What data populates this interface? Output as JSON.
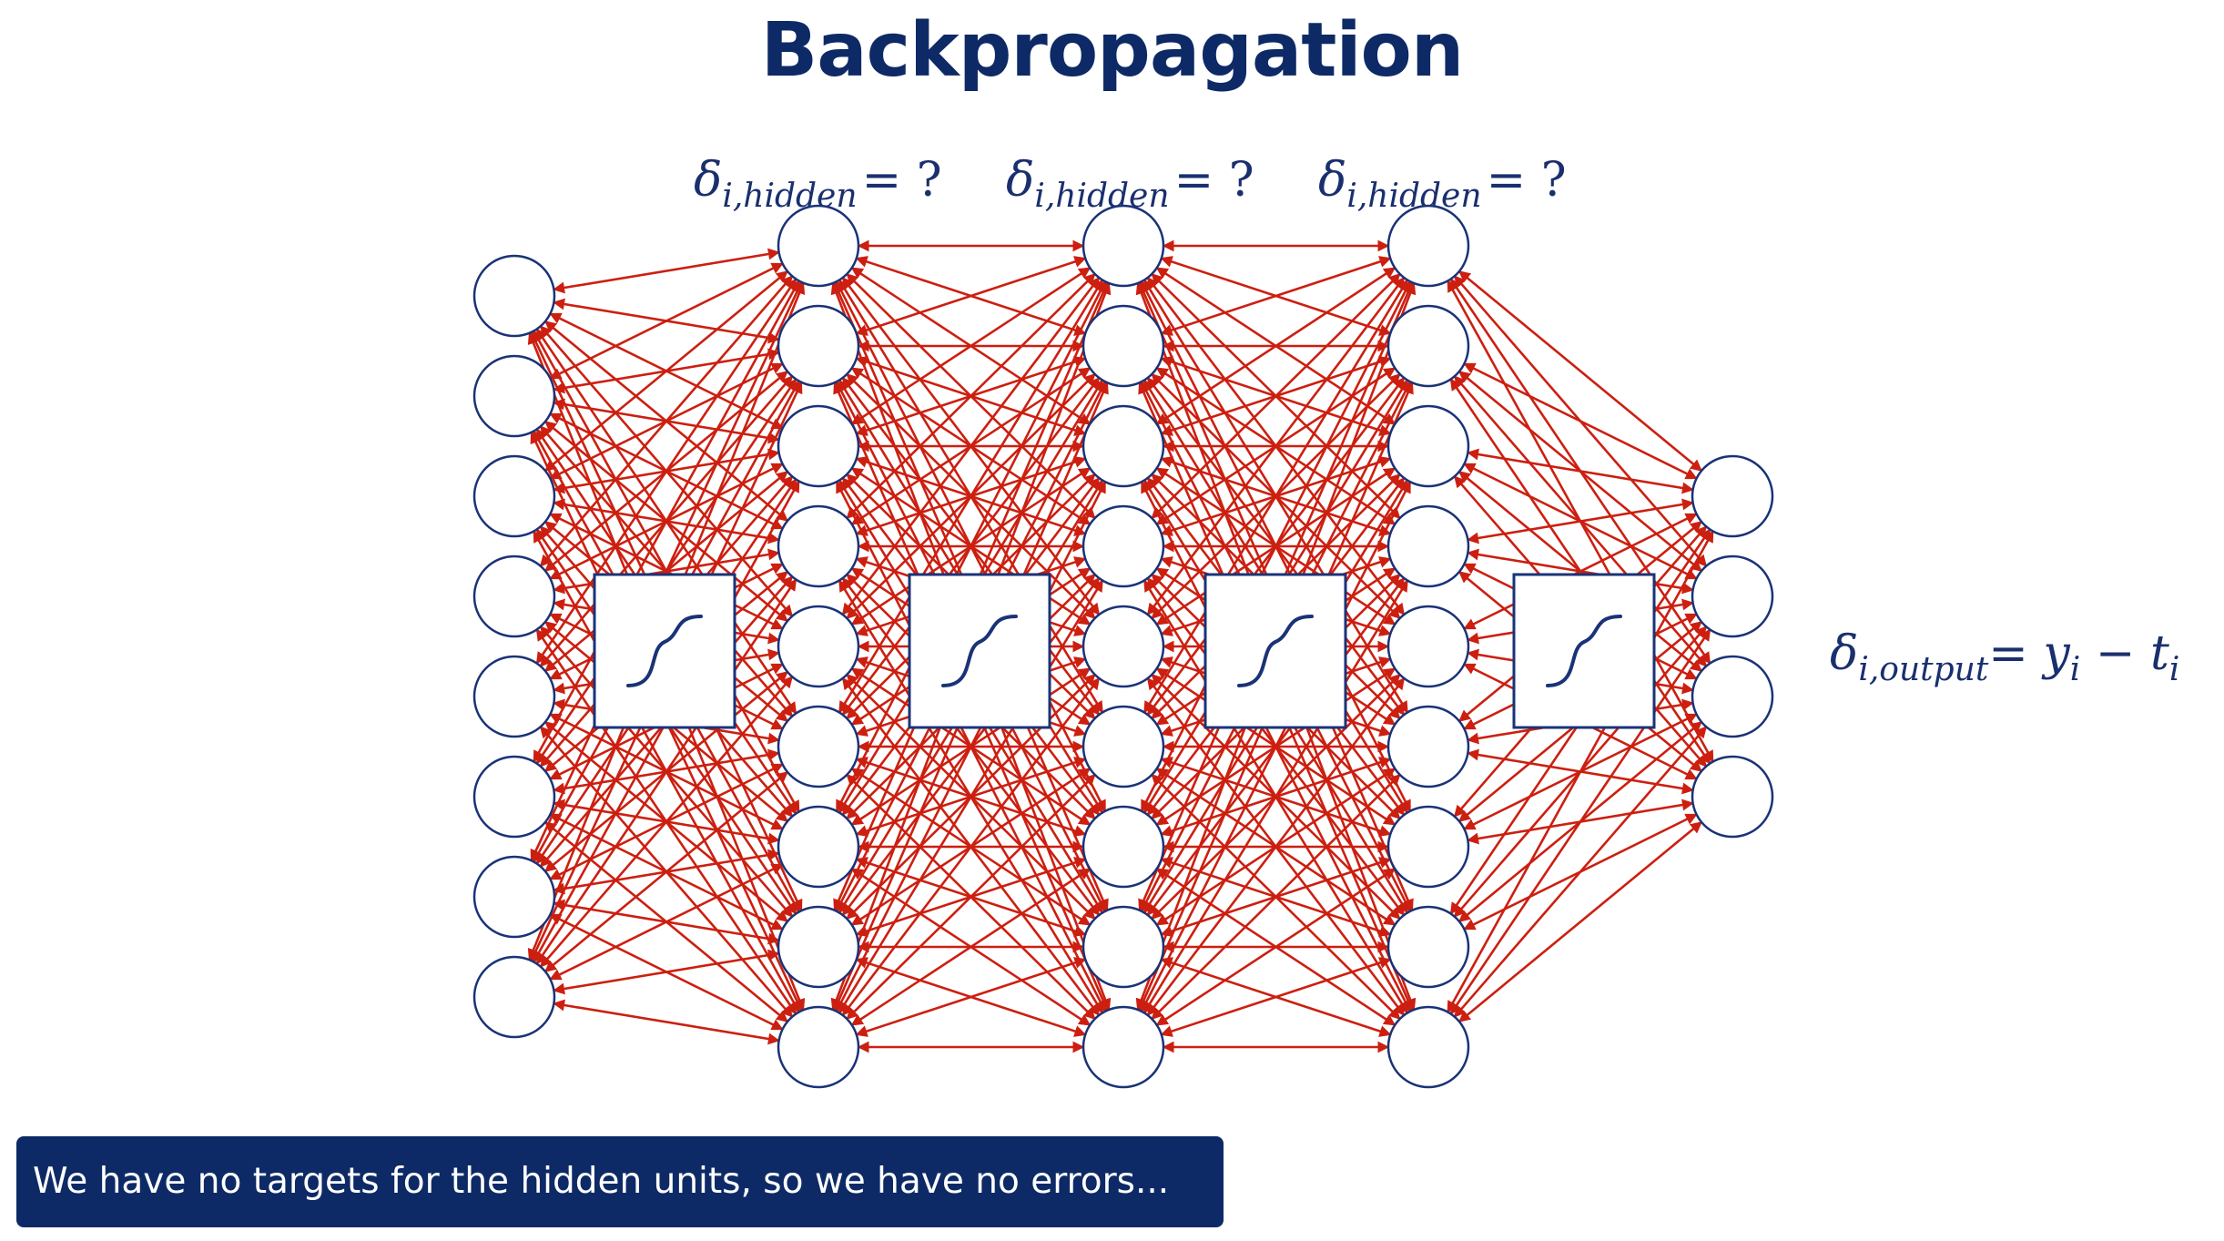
{
  "title": "Backpropagation",
  "hidden_deltas": [
    {
      "symbol": "δ",
      "subscript": "i,hidden",
      "rhs": "= ?"
    },
    {
      "symbol": "δ",
      "subscript": "i,hidden",
      "rhs": "= ?"
    },
    {
      "symbol": "δ",
      "subscript": "i,hidden",
      "rhs": "= ?"
    }
  ],
  "output_delta": {
    "symbol": "δ",
    "subscript": "i,output",
    "rhs_eq": "= ",
    "y": "y",
    "y_sub": "i",
    "minus": " − ",
    "t": "t",
    "t_sub": "i"
  },
  "caption": "We have no targets for the hidden units, so we have no errors...",
  "network": {
    "layer_sizes": [
      8,
      9,
      9,
      9,
      4
    ],
    "activation_boxes": 4,
    "activation_icon": "sigmoid-curve-icon"
  },
  "colors": {
    "title": "#0d2a66",
    "node_stroke": "#1a3377",
    "edge": "#cc1f10",
    "caption_bg": "#0d2a66",
    "caption_text": "#ffffff"
  }
}
